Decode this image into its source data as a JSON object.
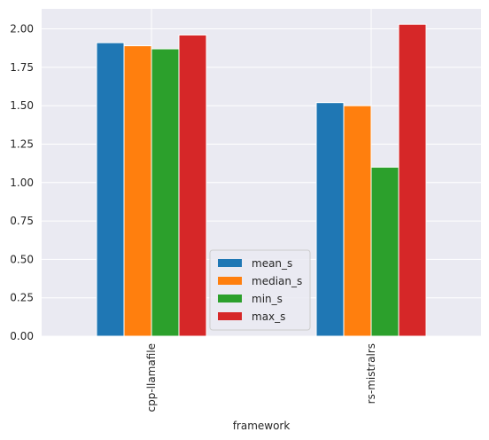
{
  "chart_data": {
    "type": "bar",
    "title": "",
    "xlabel": "framework",
    "ylabel": "",
    "categories": [
      "cpp-llamafile",
      "rs-mistralrs"
    ],
    "series": [
      {
        "name": "mean_s",
        "color": "#1f77b4",
        "values": [
          1.91,
          1.52
        ]
      },
      {
        "name": "median_s",
        "color": "#ff7f0e",
        "values": [
          1.89,
          1.5
        ]
      },
      {
        "name": "min_s",
        "color": "#2ca02c",
        "values": [
          1.87,
          1.1
        ]
      },
      {
        "name": "max_s",
        "color": "#d62728",
        "values": [
          1.96,
          2.03
        ]
      }
    ],
    "ylim": [
      0,
      2.13
    ],
    "yticks": [
      "0.00",
      "0.25",
      "0.50",
      "0.75",
      "1.00",
      "1.25",
      "1.50",
      "1.75",
      "2.00"
    ],
    "grid": true,
    "legend_position": "lower-center",
    "background": "#eaeaf2"
  }
}
